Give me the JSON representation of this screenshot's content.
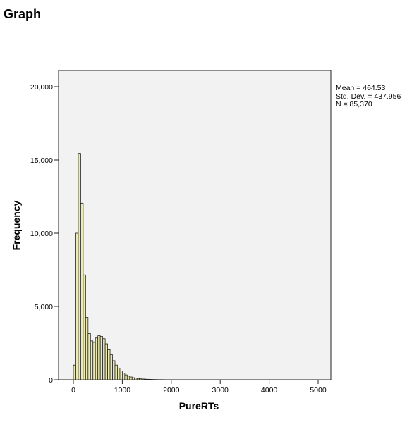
{
  "page": {
    "title": "Graph"
  },
  "stats": {
    "mean": "Mean = 464.53",
    "std_dev": "Std. Dev. = 437.956",
    "n": "N = 85,370"
  },
  "colors": {
    "bar_fill": "#ecebb5",
    "bar_stroke": "#222222",
    "plot_bg": "#f2f2f2"
  },
  "chart_data": {
    "type": "bar",
    "title": "",
    "xlabel": "PureRTs",
    "ylabel": "Frequency",
    "xlim": [
      -50,
      5200
    ],
    "ylim": [
      0,
      20000
    ],
    "xticks": [
      0,
      1000,
      2000,
      3000,
      4000,
      5000
    ],
    "xtick_labels": [
      "0",
      "1000",
      "2000",
      "3000",
      "4000",
      "5000"
    ],
    "yticks": [
      0,
      5000,
      10000,
      15000,
      20000
    ],
    "ytick_labels": [
      "0",
      "5,000",
      "10,000",
      "15,000",
      "20,000"
    ],
    "bin_start": 0,
    "bin_width": 50,
    "values": [
      1000,
      10000,
      15450,
      12050,
      7150,
      4250,
      3150,
      2650,
      2550,
      2850,
      3000,
      2950,
      2800,
      2450,
      2050,
      1700,
      1300,
      1000,
      800,
      600,
      450,
      330,
      250,
      190,
      140,
      110,
      85,
      65,
      50,
      40,
      32,
      26,
      20,
      16,
      12,
      10,
      8,
      6,
      5,
      4,
      3,
      3,
      2,
      2,
      2,
      1,
      1,
      1,
      1,
      1
    ],
    "grid": false,
    "legend": "none"
  }
}
